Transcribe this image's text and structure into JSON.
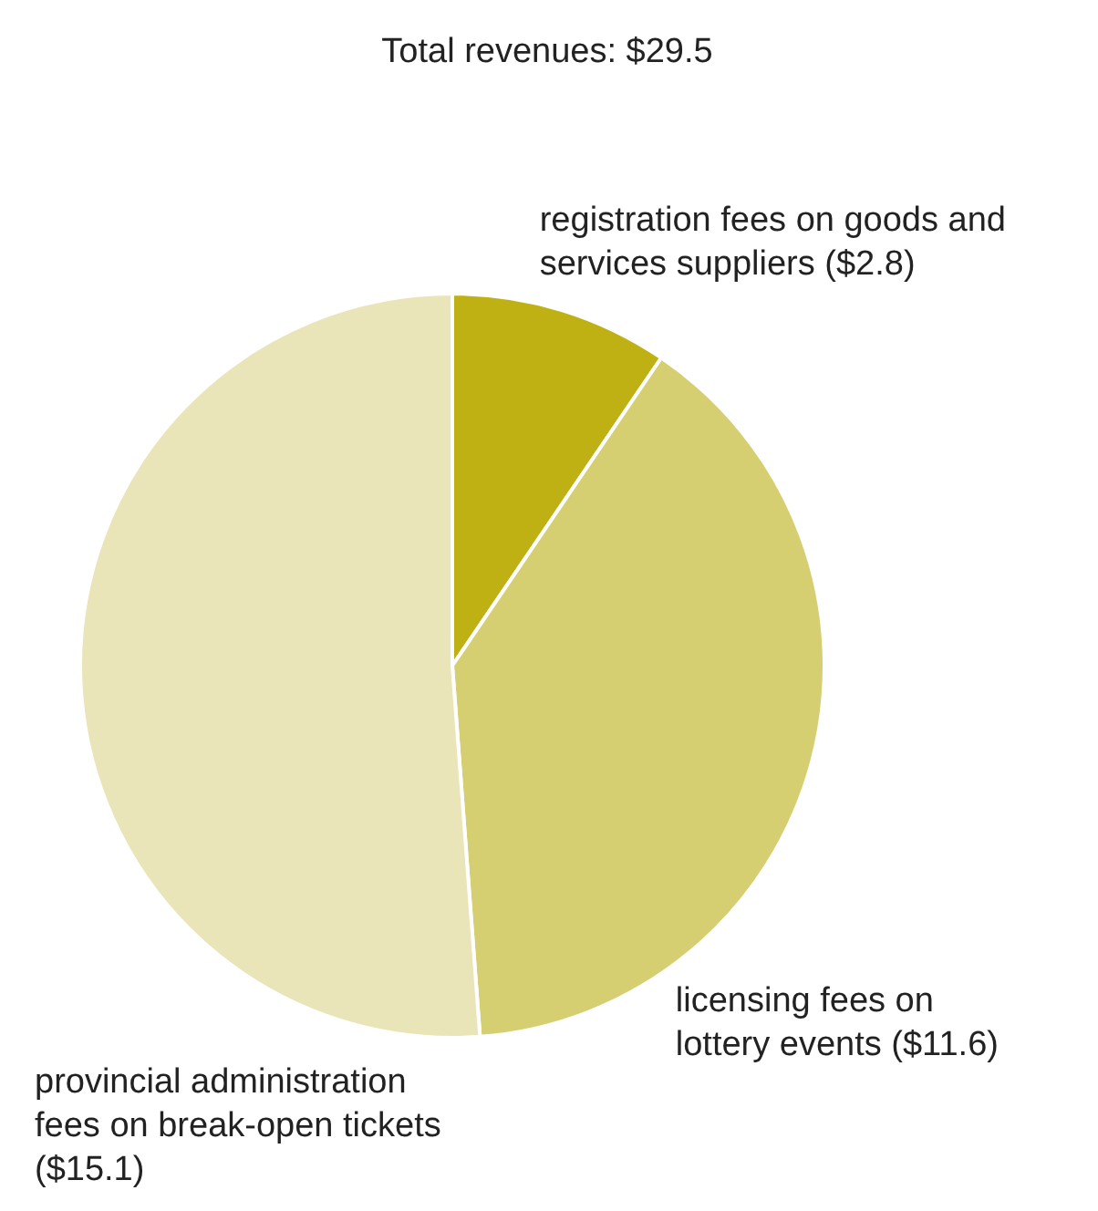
{
  "chart_data": {
    "type": "pie",
    "title": "Total revenues: $29.5",
    "categories": [
      "registration fees on goods and services suppliers",
      "licensing fees on lottery events",
      "provincial administration fees on break-open tickets"
    ],
    "values": [
      2.8,
      11.6,
      15.1
    ],
    "colors": [
      "#bfb014",
      "#d6cf72",
      "#e9e5b8"
    ],
    "value_labels": [
      "($2.8)",
      "($11.6)",
      "($15.1)"
    ]
  }
}
